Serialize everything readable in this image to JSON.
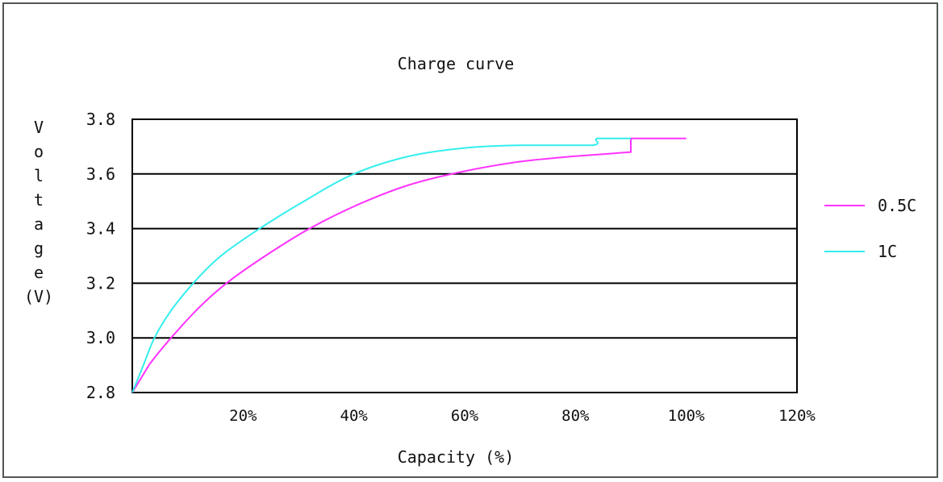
{
  "chart_data": {
    "type": "line",
    "title": "Charge curve",
    "xlabel": "Capacity (%)",
    "ylabel": "Voltage (V)",
    "xlim": [
      0,
      120
    ],
    "ylim": [
      2.8,
      3.8
    ],
    "x_ticks": [
      "20%",
      "40%",
      "60%",
      "80%",
      "100%",
      "120%"
    ],
    "y_ticks": [
      "2.8",
      "3.0",
      "3.2",
      "3.4",
      "3.6",
      "3.8"
    ],
    "grid": "horizontal",
    "legend": "right",
    "series": [
      {
        "name": "0.5C",
        "color": "#ff33ff",
        "points": [
          [
            0,
            2.8
          ],
          [
            3,
            2.9
          ],
          [
            7,
            3.0
          ],
          [
            12,
            3.11
          ],
          [
            17,
            3.2
          ],
          [
            24,
            3.3
          ],
          [
            32,
            3.4
          ],
          [
            41,
            3.49
          ],
          [
            50,
            3.56
          ],
          [
            60,
            3.61
          ],
          [
            70,
            3.645
          ],
          [
            80,
            3.665
          ],
          [
            90,
            3.68
          ],
          [
            90,
            3.73
          ],
          [
            100,
            3.73
          ]
        ]
      },
      {
        "name": "1C",
        "color": "#33eeee",
        "points": [
          [
            0,
            2.8
          ],
          [
            2,
            2.9
          ],
          [
            4,
            3.0
          ],
          [
            7,
            3.1
          ],
          [
            11,
            3.2
          ],
          [
            16,
            3.3
          ],
          [
            23,
            3.4
          ],
          [
            31,
            3.5
          ],
          [
            40,
            3.6
          ],
          [
            50,
            3.665
          ],
          [
            60,
            3.695
          ],
          [
            70,
            3.705
          ],
          [
            83,
            3.705
          ],
          [
            84,
            3.73
          ],
          [
            90,
            3.73
          ]
        ]
      }
    ]
  }
}
